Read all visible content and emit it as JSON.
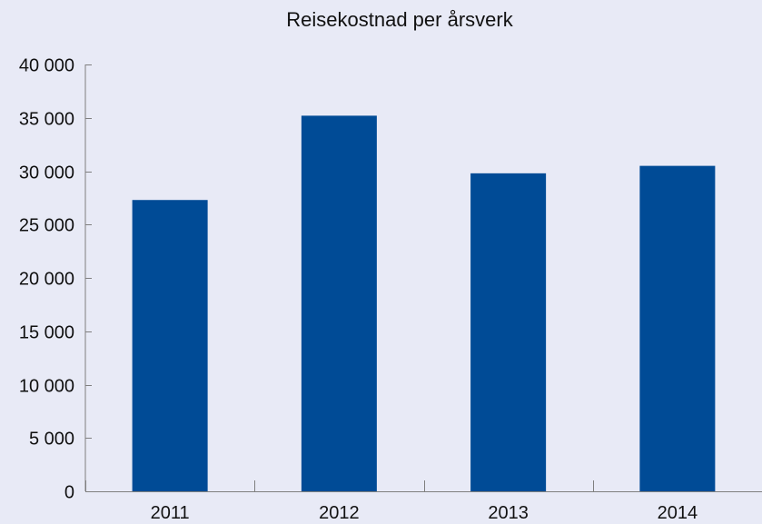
{
  "chart_data": {
    "type": "bar",
    "title": "Reisekostnad per årsverk",
    "categories": [
      "2011",
      "2012",
      "2013",
      "2014"
    ],
    "values": [
      27300,
      35200,
      29800,
      30500
    ],
    "ylim": [
      0,
      40000
    ],
    "y_ticks": [
      0,
      5000,
      10000,
      15000,
      20000,
      25000,
      30000,
      35000,
      40000
    ],
    "y_tick_labels": [
      "0",
      "5 000",
      "10 000",
      "15 000",
      "20 000",
      "25 000",
      "30 000",
      "35 000",
      "40 000"
    ],
    "xlabel": "",
    "ylabel": "",
    "grid": false,
    "legend": "none",
    "bar_color": "#004b96",
    "axis_color": "#7f7f7f",
    "background_color": "#e8eaf6"
  }
}
